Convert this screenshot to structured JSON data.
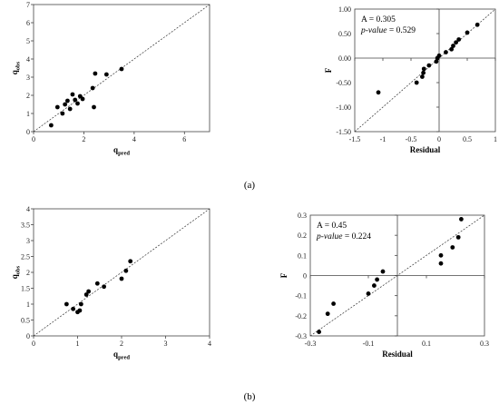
{
  "captions": [
    "(a)",
    "(b)"
  ],
  "chart_data": [
    {
      "type": "scatter",
      "panel": "a-left",
      "xlabel": "q",
      "xlabel_sub": "pred",
      "ylabel": "q",
      "ylabel_sub": "obs",
      "xlim": [
        0,
        7
      ],
      "ylim": [
        0,
        7
      ],
      "xticks": [
        0,
        2,
        4,
        6
      ],
      "yticks": [
        0,
        1,
        2,
        3,
        4,
        5,
        6,
        7
      ],
      "reference_line": "y = x (dashed)",
      "points": [
        {
          "x": 0.7,
          "y": 0.35
        },
        {
          "x": 0.95,
          "y": 1.35
        },
        {
          "x": 1.15,
          "y": 1.0
        },
        {
          "x": 1.25,
          "y": 1.5
        },
        {
          "x": 1.35,
          "y": 1.7
        },
        {
          "x": 1.45,
          "y": 1.25
        },
        {
          "x": 1.55,
          "y": 2.05
        },
        {
          "x": 1.65,
          "y": 1.75
        },
        {
          "x": 1.75,
          "y": 1.55
        },
        {
          "x": 1.85,
          "y": 1.95
        },
        {
          "x": 1.95,
          "y": 1.8
        },
        {
          "x": 2.35,
          "y": 2.4
        },
        {
          "x": 2.4,
          "y": 1.35
        },
        {
          "x": 2.45,
          "y": 3.2
        },
        {
          "x": 2.9,
          "y": 3.15
        },
        {
          "x": 3.5,
          "y": 3.45
        }
      ]
    },
    {
      "type": "scatter",
      "panel": "a-right",
      "xlabel": "Residual",
      "ylabel": "F",
      "xlim": [
        -1.5,
        1
      ],
      "ylim": [
        -1.5,
        1
      ],
      "xticks": [
        -1.5,
        -1,
        -0.5,
        0,
        0.5,
        1
      ],
      "xtick_labels": [
        "-1.5",
        "-1",
        "-0.5",
        "0",
        "0.5",
        "1"
      ],
      "yticks": [
        -1.5,
        -1.0,
        -0.5,
        0.0,
        0.5,
        1.0
      ],
      "ytick_labels": [
        "-1.50",
        "-1.00",
        "-0.50",
        "0.00",
        "0.50",
        "1.00"
      ],
      "annotation_stat": "A = 0.305",
      "annotation_p_label": "p-value",
      "annotation_p_value": " = 0.529",
      "reference_line": "y = x (dashed)",
      "points": [
        {
          "x": -1.08,
          "y": -0.7
        },
        {
          "x": -0.4,
          "y": -0.5
        },
        {
          "x": -0.3,
          "y": -0.38
        },
        {
          "x": -0.28,
          "y": -0.3
        },
        {
          "x": -0.27,
          "y": -0.22
        },
        {
          "x": -0.18,
          "y": -0.15
        },
        {
          "x": -0.05,
          "y": -0.07
        },
        {
          "x": -0.03,
          "y": 0.0
        },
        {
          "x": 0.0,
          "y": 0.05
        },
        {
          "x": 0.12,
          "y": 0.12
        },
        {
          "x": 0.22,
          "y": 0.18
        },
        {
          "x": 0.25,
          "y": 0.25
        },
        {
          "x": 0.3,
          "y": 0.32
        },
        {
          "x": 0.35,
          "y": 0.38
        },
        {
          "x": 0.5,
          "y": 0.52
        },
        {
          "x": 0.68,
          "y": 0.68
        }
      ]
    },
    {
      "type": "scatter",
      "panel": "b-left",
      "xlabel": "q",
      "xlabel_sub": "pred",
      "ylabel": "q",
      "ylabel_sub": "obs",
      "xlim": [
        0,
        4
      ],
      "ylim": [
        0,
        4
      ],
      "xticks": [
        0,
        1,
        2,
        3,
        4
      ],
      "yticks": [
        0,
        0.5,
        1,
        1.5,
        2,
        2.5,
        3,
        3.5,
        4
      ],
      "reference_line": "y = x (dashed)",
      "points": [
        {
          "x": 0.75,
          "y": 1.0
        },
        {
          "x": 0.9,
          "y": 0.85
        },
        {
          "x": 1.0,
          "y": 0.75
        },
        {
          "x": 1.05,
          "y": 0.8
        },
        {
          "x": 1.08,
          "y": 1.0
        },
        {
          "x": 1.2,
          "y": 1.3
        },
        {
          "x": 1.25,
          "y": 1.4
        },
        {
          "x": 1.45,
          "y": 1.65
        },
        {
          "x": 1.6,
          "y": 1.55
        },
        {
          "x": 2.0,
          "y": 1.8
        },
        {
          "x": 2.1,
          "y": 2.05
        },
        {
          "x": 2.2,
          "y": 2.35
        }
      ]
    },
    {
      "type": "scatter",
      "panel": "b-right",
      "xlabel": "Residual",
      "ylabel": "F",
      "xlim": [
        -0.3,
        0.3
      ],
      "ylim": [
        -0.3,
        0.3
      ],
      "xticks": [
        -0.3,
        -0.1,
        0.1,
        0.3
      ],
      "xtick_labels": [
        "-0.3",
        "-0.1",
        "0.1",
        "0.3"
      ],
      "yticks": [
        -0.3,
        -0.2,
        -0.1,
        0,
        0.1,
        0.2,
        0.3
      ],
      "ytick_labels": [
        "-0.3",
        "-0.2",
        "-0.1",
        "0",
        "0.1",
        "0.2",
        "0.3"
      ],
      "annotation_stat": "A = 0.45",
      "annotation_p_label": "p-value",
      "annotation_p_value": " = 0.224",
      "reference_line": "y = x (dashed)",
      "points": [
        {
          "x": -0.27,
          "y": -0.28
        },
        {
          "x": -0.24,
          "y": -0.19
        },
        {
          "x": -0.22,
          "y": -0.14
        },
        {
          "x": -0.1,
          "y": -0.09
        },
        {
          "x": -0.08,
          "y": -0.05
        },
        {
          "x": -0.07,
          "y": -0.02
        },
        {
          "x": -0.05,
          "y": 0.02
        },
        {
          "x": 0.15,
          "y": 0.06
        },
        {
          "x": 0.15,
          "y": 0.1
        },
        {
          "x": 0.19,
          "y": 0.14
        },
        {
          "x": 0.21,
          "y": 0.19
        },
        {
          "x": 0.22,
          "y": 0.28
        }
      ]
    }
  ]
}
